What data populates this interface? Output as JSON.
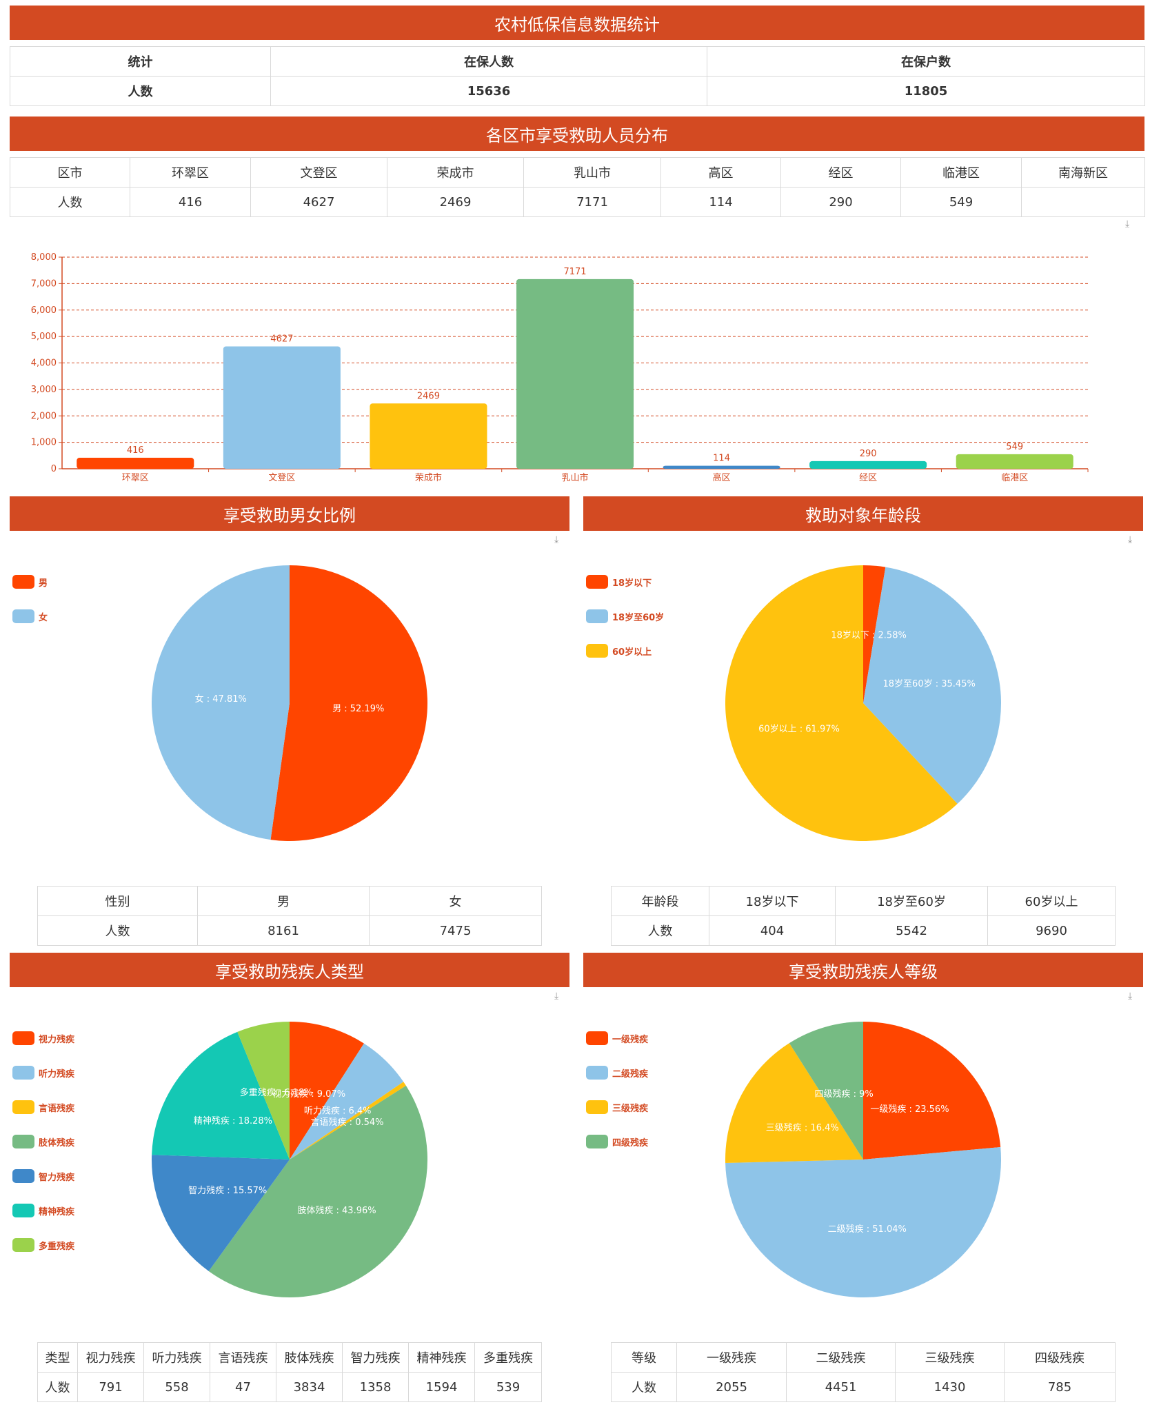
{
  "header": {
    "title": "农村低保信息数据统计"
  },
  "summary": {
    "headers": [
      "统计",
      "在保人数",
      "在保户数"
    ],
    "row": [
      "人数",
      "15636",
      "11805"
    ]
  },
  "district": {
    "title": "各区市享受救助人员分布",
    "headers": [
      "区市",
      "环翠区",
      "文登区",
      "荣成市",
      "乳山市",
      "高区",
      "经区",
      "临港区",
      "南海新区"
    ],
    "row": [
      "人数",
      "416",
      "4627",
      "2469",
      "7171",
      "114",
      "290",
      "549",
      ""
    ]
  },
  "gender": {
    "title": "享受救助男女比例",
    "headers": [
      "性别",
      "男",
      "女"
    ],
    "row": [
      "人数",
      "8161",
      "7475"
    ]
  },
  "age": {
    "title": "救助对象年龄段",
    "headers": [
      "年龄段",
      "18岁以下",
      "18岁至60岁",
      "60岁以上"
    ],
    "row": [
      "人数",
      "404",
      "5542",
      "9690"
    ]
  },
  "disability_type": {
    "title": "享受救助残疾人类型",
    "headers": [
      "类型",
      "视力残疾",
      "听力残疾",
      "言语残疾",
      "肢体残疾",
      "智力残疾",
      "精神残疾",
      "多重残疾"
    ],
    "row": [
      "人数",
      "791",
      "558",
      "47",
      "3834",
      "1358",
      "1594",
      "539"
    ]
  },
  "disability_level": {
    "title": "享受救助残疾人等级",
    "headers": [
      "等级",
      "一级残疾",
      "二级残疾",
      "三级残疾",
      "四级残疾"
    ],
    "row": [
      "人数",
      "2055",
      "4451",
      "1430",
      "785"
    ]
  },
  "icons": {
    "download": "download-icon"
  },
  "colors": {
    "banner": "#d34a22",
    "axis": "#d34a22",
    "label": "#d34a22"
  },
  "chart_data": [
    {
      "type": "bar",
      "categories": [
        "环翠区",
        "文登区",
        "荣成市",
        "乳山市",
        "高区",
        "经区",
        "临港区"
      ],
      "values": [
        416,
        4627,
        2469,
        7171,
        114,
        290,
        549
      ],
      "colors": [
        "#ff4500",
        "#8ec4e8",
        "#ffc20e",
        "#76bb83",
        "#3f88c9",
        "#14c8b4",
        "#9bd24b"
      ],
      "ylim": [
        0,
        8000
      ],
      "yticks": [
        "0",
        "1,000",
        "2,000",
        "3,000",
        "4,000",
        "5,000",
        "6,000",
        "7,000",
        "8,000"
      ],
      "grid": true
    },
    {
      "type": "pie",
      "categories": [
        "男",
        "女"
      ],
      "values": [
        8161,
        7475
      ],
      "labels": [
        "男 : 52.19%",
        "女 : 47.81%"
      ],
      "colors": [
        "#ff4500",
        "#8ec4e8"
      ],
      "legend": "top-left"
    },
    {
      "type": "pie",
      "categories": [
        "18岁以下",
        "18岁至60岁",
        "60岁以上"
      ],
      "values": [
        404,
        5542,
        9690
      ],
      "labels": [
        "18岁以下 : 2.58%",
        "18岁至60岁 : 35.45%",
        "60岁以上 : 61.97%"
      ],
      "colors": [
        "#ff4500",
        "#8ec4e8",
        "#ffc20e"
      ],
      "legend": "top-left"
    },
    {
      "type": "pie",
      "categories": [
        "视力残疾",
        "听力残疾",
        "言语残疾",
        "肢体残疾",
        "智力残疾",
        "精神残疾",
        "多重残疾"
      ],
      "values": [
        791,
        558,
        47,
        3834,
        1358,
        1594,
        539
      ],
      "labels": [
        "视力残疾 : 9.07%",
        "听力残疾 : 6.4%",
        "言语残疾 : 0.54%",
        "肢体残疾 : 43.96%",
        "智力残疾 : 15.57%",
        "精神残疾 : 18.28%",
        "多重残疾 : 6.18%"
      ],
      "colors": [
        "#ff4500",
        "#8ec4e8",
        "#ffc20e",
        "#76bb83",
        "#3f88c9",
        "#14c8b4",
        "#9bd24b"
      ],
      "legend": "top-left"
    },
    {
      "type": "pie",
      "categories": [
        "一级残疾",
        "二级残疾",
        "三级残疾",
        "四级残疾"
      ],
      "values": [
        2055,
        4451,
        1430,
        785
      ],
      "labels": [
        "一级残疾 : 23.56%",
        "二级残疾 : 51.04%",
        "三级残疾 : 16.4%",
        "四级残疾 : 9%"
      ],
      "colors": [
        "#ff4500",
        "#8ec4e8",
        "#ffc20e",
        "#76bb83"
      ],
      "legend": "top-left"
    }
  ]
}
